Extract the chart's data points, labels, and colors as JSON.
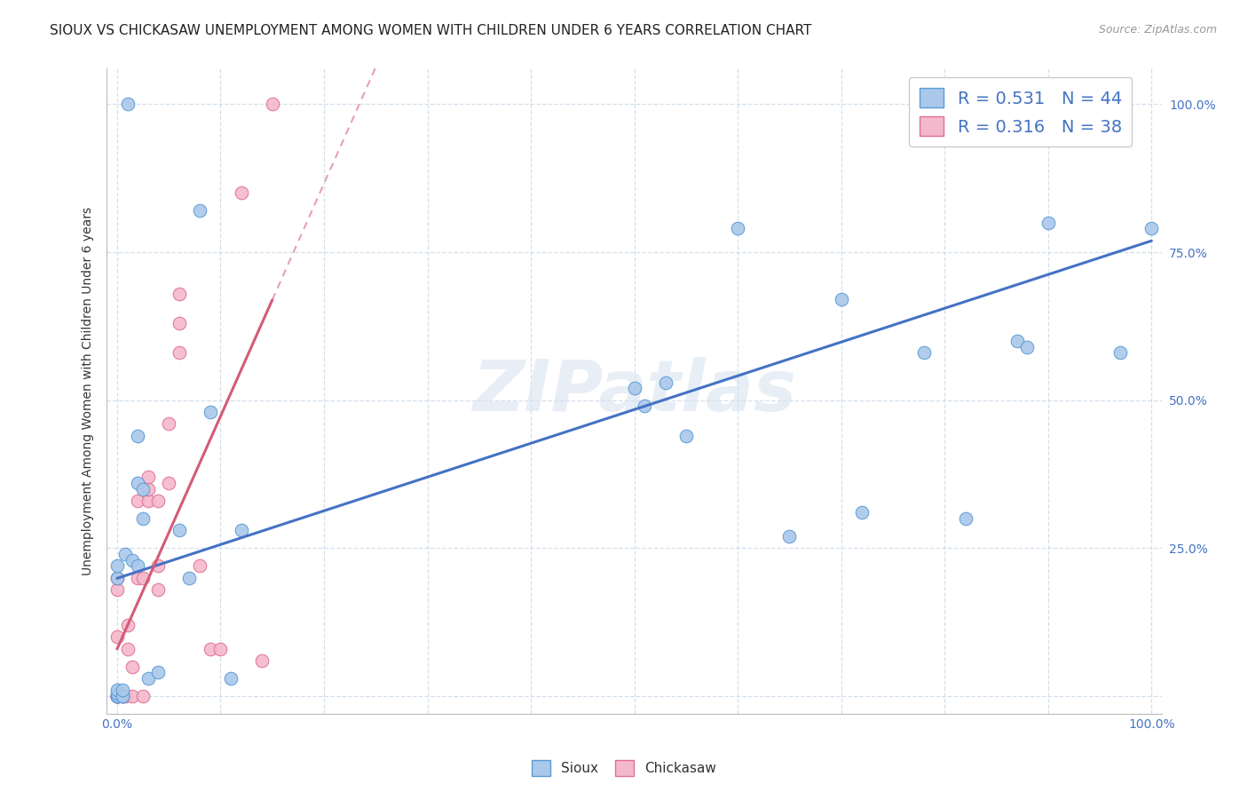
{
  "title": "SIOUX VS CHICKASAW UNEMPLOYMENT AMONG WOMEN WITH CHILDREN UNDER 6 YEARS CORRELATION CHART",
  "source": "Source: ZipAtlas.com",
  "ylabel": "Unemployment Among Women with Children Under 6 years",
  "xlim": [
    0,
    1
  ],
  "ylim": [
    -0.02,
    1.05
  ],
  "yticks": [
    0.0,
    0.25,
    0.5,
    0.75,
    1.0
  ],
  "ytick_labels": [
    "",
    "25.0%",
    "50.0%",
    "75.0%",
    "100.0%"
  ],
  "xtick_positions": [
    0.0,
    0.1,
    0.2,
    0.3,
    0.4,
    0.5,
    0.6,
    0.7,
    0.8,
    0.9,
    1.0
  ],
  "xtick_labels": [
    "0.0%",
    "",
    "",
    "",
    "",
    "",
    "",
    "",
    "",
    "",
    "100.0%"
  ],
  "sioux_color": "#aac8ea",
  "chickasaw_color": "#f4b8cc",
  "sioux_edge_color": "#5b9bd5",
  "chickasaw_edge_color": "#e07090",
  "sioux_line_color": "#4472c4",
  "chickasaw_line_color": "#d45b78",
  "chickasaw_dash_color": "#e8a0b0",
  "background_color": "#ffffff",
  "watermark_color": "#d8e4f0",
  "sioux_x": [
    0.0,
    0.0,
    0.0,
    0.0,
    0.0,
    0.0,
    0.0,
    0.005,
    0.005,
    0.005,
    0.008,
    0.01,
    0.015,
    0.02,
    0.02,
    0.02,
    0.025,
    0.025,
    0.03,
    0.04,
    0.06,
    0.07,
    0.08,
    0.09,
    0.11,
    0.12,
    0.5,
    0.51,
    0.53,
    0.55,
    0.6,
    0.65,
    0.7,
    0.72,
    0.78,
    0.82,
    0.85,
    0.87,
    0.88,
    0.9,
    0.93,
    0.95,
    0.97,
    1.0
  ],
  "sioux_y": [
    0.0,
    0.0,
    0.0,
    0.005,
    0.01,
    0.2,
    0.22,
    0.0,
    0.0,
    0.01,
    0.24,
    1.0,
    0.23,
    0.22,
    0.36,
    0.44,
    0.3,
    0.35,
    0.03,
    0.04,
    0.28,
    0.2,
    0.82,
    0.48,
    0.03,
    0.28,
    0.52,
    0.49,
    0.53,
    0.44,
    0.79,
    0.27,
    0.67,
    0.31,
    0.58,
    0.3,
    1.0,
    0.6,
    0.59,
    0.8,
    1.0,
    1.0,
    0.58,
    0.79
  ],
  "chickasaw_x": [
    0.0,
    0.0,
    0.0,
    0.0,
    0.0,
    0.0,
    0.0,
    0.0,
    0.0,
    0.0,
    0.005,
    0.005,
    0.008,
    0.01,
    0.01,
    0.015,
    0.015,
    0.02,
    0.02,
    0.025,
    0.025,
    0.03,
    0.03,
    0.03,
    0.04,
    0.04,
    0.04,
    0.05,
    0.05,
    0.06,
    0.06,
    0.06,
    0.08,
    0.09,
    0.1,
    0.12,
    0.14,
    0.15
  ],
  "chickasaw_y": [
    0.0,
    0.0,
    0.0,
    0.0,
    0.0,
    0.0,
    0.0,
    0.1,
    0.18,
    0.2,
    0.0,
    0.0,
    0.0,
    0.08,
    0.12,
    0.0,
    0.05,
    0.2,
    0.33,
    0.0,
    0.2,
    0.33,
    0.35,
    0.37,
    0.18,
    0.22,
    0.33,
    0.36,
    0.46,
    0.58,
    0.63,
    0.68,
    0.22,
    0.08,
    0.08,
    0.85,
    0.06,
    1.0
  ],
  "title_fontsize": 11,
  "source_fontsize": 9,
  "ylabel_fontsize": 10,
  "tick_fontsize": 10,
  "legend_fontsize": 14,
  "marker_size": 110,
  "sioux_line_intercept": 0.26,
  "sioux_line_slope": 0.54,
  "chickasaw_line_x0": 0.0,
  "chickasaw_line_y0": 0.1,
  "chickasaw_line_x1": 0.115,
  "chickasaw_line_y1": 0.58
}
